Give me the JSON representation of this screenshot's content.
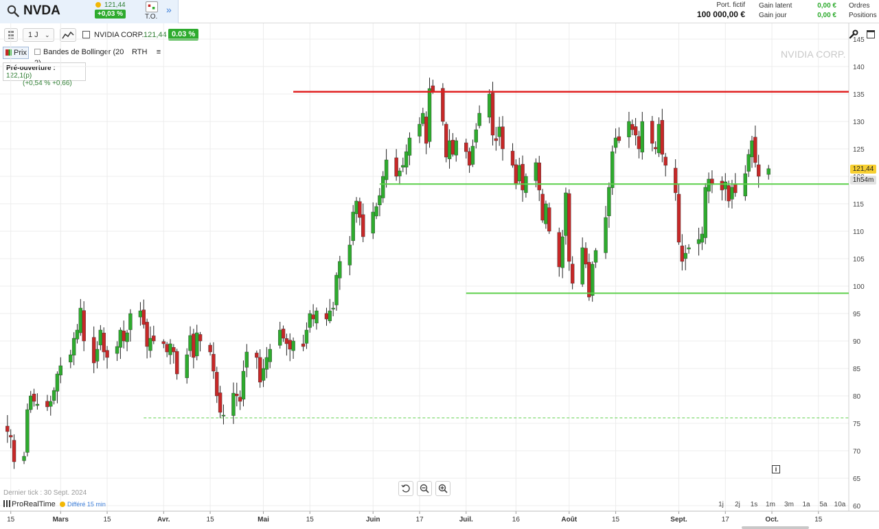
{
  "header": {
    "symbol": "NVDA",
    "last_price": "121,44",
    "change_pct": "+0,03 %",
    "to_label": "T.O.",
    "expand_label": "»",
    "portfolio_label": "Port. fictif",
    "portfolio_value": "100 000,00 €",
    "gain_latent_label": "Gain latent",
    "gain_jour_label": "Gain jour",
    "gain_latent_value": "0,00 €",
    "gain_jour_value": "0,00 €",
    "orders_label": "Ordres",
    "positions_label": "Positions"
  },
  "toolbar": {
    "interval": "1 J",
    "instrument": "NVIDIA CORP.",
    "price": "121,44",
    "change": "0.03 %"
  },
  "legend": {
    "price": "Prix",
    "bollinger": "Bandes de Bollinger (20 2)",
    "rth": "RTH",
    "menu": "≡"
  },
  "preopen": {
    "label": "Pré-ouverture :",
    "value": "122,1(p)",
    "detail": "(+0,54 % +0,66)"
  },
  "watermark": "NVIDIA CORP.",
  "price_tag": "121,44",
  "time_tag": "1h54m",
  "footer": {
    "last_tick": "Dernier tick : 30 Sept. 2024",
    "brand": "ProRealTime",
    "delay": "Différé 15 min",
    "periods": [
      "1j",
      "2j",
      "1s",
      "1m",
      "3m",
      "1a",
      "5a",
      "10a"
    ]
  },
  "colors": {
    "up": "#2eab2e",
    "down": "#c62828",
    "resistance": "#e02020",
    "support": "#5ccf4a"
  },
  "chart_data": {
    "type": "candlestick",
    "y_ticks": [
      60,
      65,
      70,
      75,
      80,
      85,
      90,
      95,
      100,
      105,
      110,
      115,
      120,
      125,
      130,
      135,
      140,
      145
    ],
    "ylim": [
      60,
      145
    ],
    "x_ticks": [
      {
        "label": "15",
        "date": "2024-02-15"
      },
      {
        "label": "Mars",
        "date": "2024-03-01"
      },
      {
        "label": "15",
        "date": "2024-03-15"
      },
      {
        "label": "Avr.",
        "date": "2024-04-01"
      },
      {
        "label": "15",
        "date": "2024-04-15"
      },
      {
        "label": "Mai",
        "date": "2024-05-01"
      },
      {
        "label": "15",
        "date": "2024-05-15"
      },
      {
        "label": "Juin",
        "date": "2024-06-03"
      },
      {
        "label": "17",
        "date": "2024-06-17"
      },
      {
        "label": "Juil.",
        "date": "2024-07-01"
      },
      {
        "label": "16",
        "date": "2024-07-16"
      },
      {
        "label": "Août",
        "date": "2024-08-01"
      },
      {
        "label": "15",
        "date": "2024-08-15"
      },
      {
        "label": "Sept.",
        "date": "2024-09-03"
      },
      {
        "label": "17",
        "date": "2024-09-17"
      },
      {
        "label": "Oct.",
        "date": "2024-10-01"
      },
      {
        "label": "15",
        "date": "2024-10-15"
      }
    ],
    "lines": [
      {
        "name": "resistance",
        "value": 135.4,
        "from": "2024-05-10",
        "style": "solid"
      },
      {
        "name": "support-1",
        "value": 118.6,
        "from": "2024-06-05",
        "style": "solid"
      },
      {
        "name": "support-2",
        "value": 98.7,
        "from": "2024-07-01",
        "style": "solid"
      },
      {
        "name": "support-3",
        "value": 76.0,
        "from": "2024-03-26",
        "style": "dashed"
      }
    ],
    "closes": [
      73.5,
      72.5,
      68.0,
      69.0,
      77.5,
      80.0,
      79.0,
      78.5,
      78.0,
      79.0,
      81.0,
      84.0,
      85.5,
      87.5,
      90.5,
      92.0,
      96.0,
      90.0,
      86.0,
      88.5,
      92.0,
      88.0,
      87.0,
      89.0,
      92.0,
      90.0,
      91.5,
      95.0,
      95.5,
      93.0,
      89.0,
      90.5,
      90.0,
      89.5,
      88.0,
      89.5,
      88.0,
      84.0,
      87.5,
      91.0,
      87.0,
      91.5,
      90.0,
      88.0,
      84.5,
      80.0,
      77.0,
      76.5,
      80.5,
      80.0,
      79.0,
      84.5,
      88.0,
      87.0,
      82.5,
      85.0,
      87.0,
      88.5,
      92.0,
      90.5,
      89.5,
      88.5,
      90.0,
      89.0,
      92.0,
      95.0,
      94.0,
      95.5,
      94.0,
      95.5,
      96.0,
      102.0,
      104.5,
      107.5,
      113.5,
      115.5,
      112.5,
      109.0,
      113.5,
      114.5,
      116.5,
      120.0,
      123.0,
      120.0,
      121.0,
      122.0,
      124.5,
      127.0,
      129.5,
      131.5,
      126.0,
      136.0,
      135.5,
      130.0,
      123.5,
      126.5,
      124.0,
      126.5,
      124.5,
      122.0,
      125.5,
      128.5,
      131.5,
      135.0,
      127.5,
      126.5,
      129.0,
      125.0,
      122.0,
      118.5,
      122.0,
      117.5,
      120.0,
      122.5,
      117.5,
      112.0,
      115.0,
      110.0,
      103.5,
      109.0,
      117.0,
      104.5,
      100.5,
      107.0,
      104.0,
      98.0,
      104.0,
      106.5,
      112.5,
      118.0,
      124.5,
      127.0,
      126.5,
      130.0,
      128.5,
      127.5,
      125.0,
      130.0,
      126.0,
      125.0,
      129.5,
      124.0,
      122.0,
      117.0,
      108.0,
      104.5,
      106.0,
      107.0,
      108.5,
      109.5,
      118.0,
      119.5,
      118.5,
      117.5,
      119.0,
      115.5,
      118.0,
      117.0,
      120.5,
      124.0,
      126.5,
      122.5,
      120.0,
      121.4
    ],
    "last": "2024-09-30"
  }
}
